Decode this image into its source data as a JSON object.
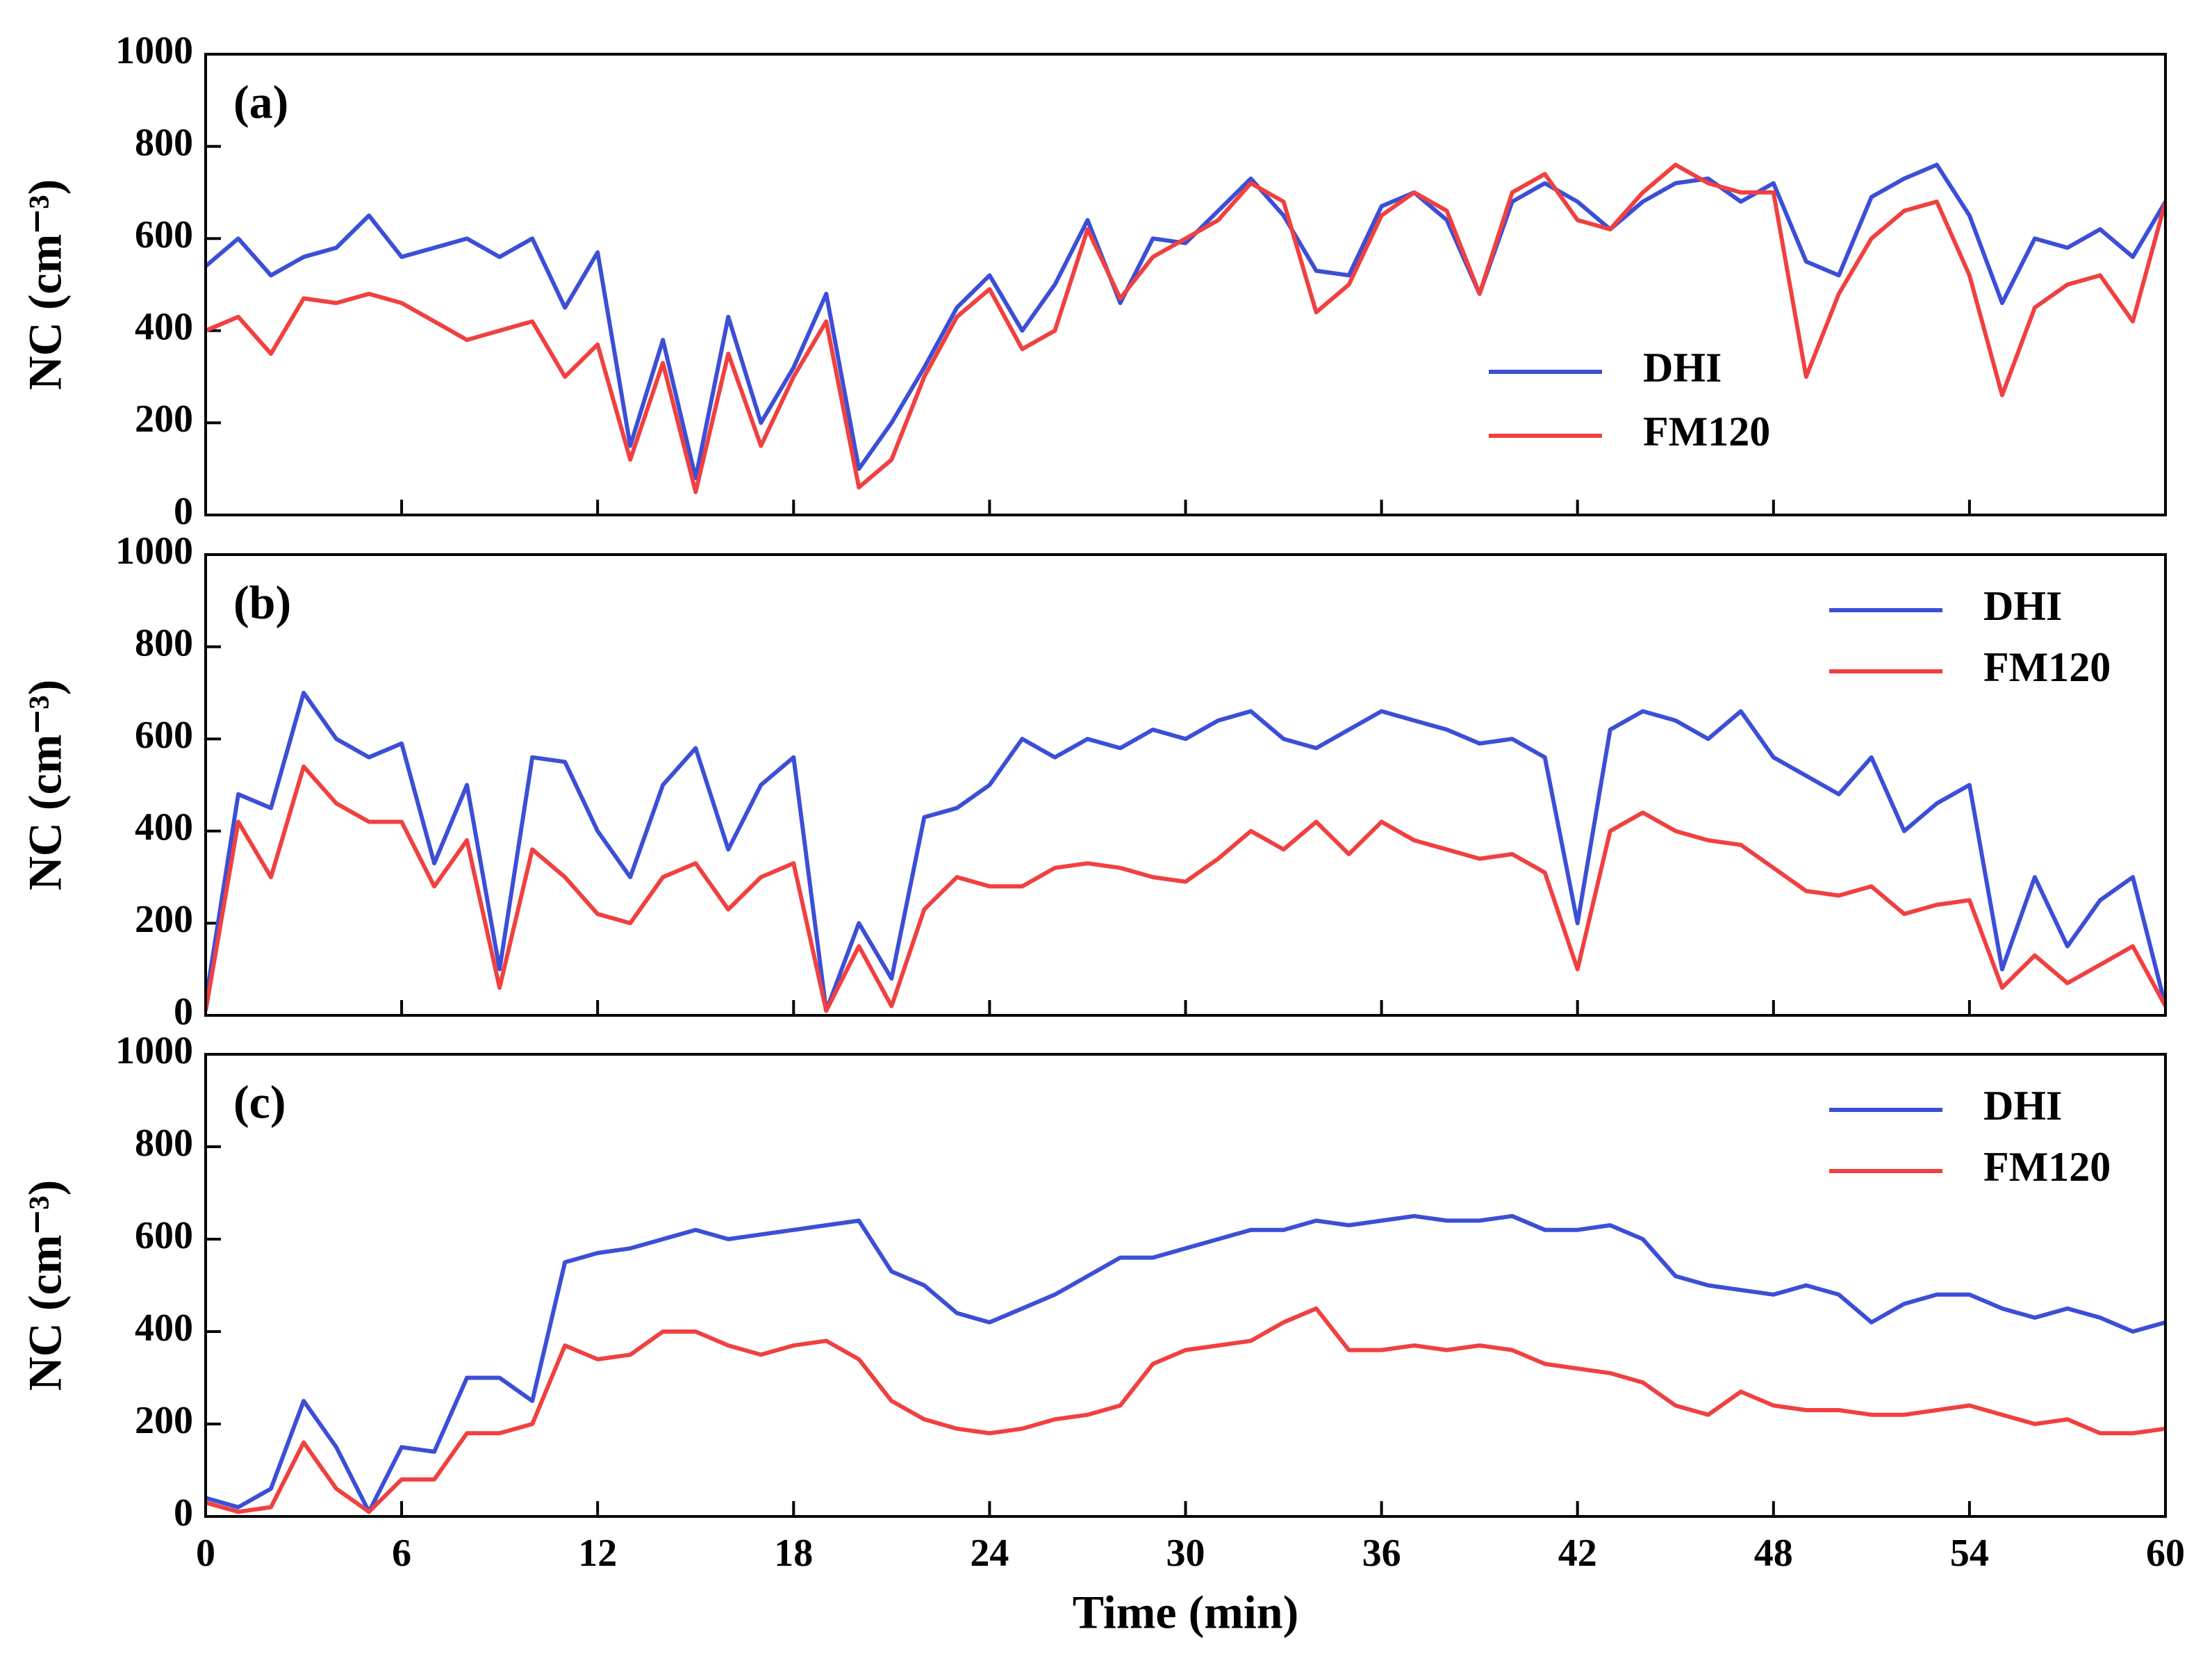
{
  "chart_data": [
    {
      "type": "line",
      "title": "(a)",
      "ylabel": "NC (cm⁻³)",
      "legend": "center right",
      "xlim": [
        0,
        60
      ],
      "xticks": [
        0,
        6,
        12,
        18,
        24,
        30,
        36,
        42,
        48,
        54,
        60
      ],
      "ylim": [
        0,
        1000
      ],
      "yticks": [
        0,
        200,
        400,
        600,
        800,
        1000
      ],
      "x": [
        0,
        1,
        2,
        3,
        4,
        5,
        6,
        7,
        8,
        9,
        10,
        11,
        12,
        13,
        14,
        15,
        16,
        17,
        18,
        19,
        20,
        21,
        22,
        23,
        24,
        25,
        26,
        27,
        28,
        29,
        30,
        31,
        32,
        33,
        34,
        35,
        36,
        37,
        38,
        39,
        40,
        41,
        42,
        43,
        44,
        45,
        46,
        47,
        48,
        49,
        50,
        51,
        52,
        53,
        54,
        55,
        56,
        57,
        58,
        59,
        60
      ],
      "series": [
        {
          "name": "DHI",
          "color": "#3b4fd6",
          "values": [
            540,
            600,
            520,
            560,
            580,
            650,
            560,
            580,
            600,
            560,
            600,
            450,
            570,
            150,
            380,
            80,
            430,
            200,
            320,
            480,
            100,
            200,
            320,
            450,
            520,
            400,
            500,
            640,
            460,
            600,
            590,
            660,
            730,
            650,
            530,
            520,
            670,
            700,
            640,
            480,
            680,
            720,
            680,
            620,
            680,
            720,
            730,
            680,
            720,
            550,
            520,
            690,
            730,
            760,
            650,
            460,
            600,
            580,
            620,
            560,
            680
          ]
        },
        {
          "name": "FM120",
          "color": "#f04040",
          "values": [
            400,
            430,
            350,
            470,
            460,
            480,
            460,
            420,
            380,
            400,
            420,
            300,
            370,
            120,
            330,
            50,
            350,
            150,
            300,
            420,
            60,
            120,
            300,
            430,
            490,
            360,
            400,
            620,
            470,
            560,
            600,
            640,
            720,
            680,
            440,
            500,
            650,
            700,
            660,
            480,
            700,
            740,
            640,
            620,
            700,
            760,
            720,
            700,
            700,
            300,
            480,
            600,
            660,
            680,
            520,
            260,
            450,
            500,
            520,
            420,
            680
          ]
        }
      ]
    },
    {
      "type": "line",
      "title": "(b)",
      "ylabel": "NC (cm⁻³)",
      "legend": "upper right",
      "xlim": [
        0,
        60
      ],
      "xticks": [
        0,
        6,
        12,
        18,
        24,
        30,
        36,
        42,
        48,
        54,
        60
      ],
      "ylim": [
        0,
        1000
      ],
      "yticks": [
        0,
        200,
        400,
        600,
        800,
        1000
      ],
      "x": [
        0,
        1,
        2,
        3,
        4,
        5,
        6,
        7,
        8,
        9,
        10,
        11,
        12,
        13,
        14,
        15,
        16,
        17,
        18,
        19,
        20,
        21,
        22,
        23,
        24,
        25,
        26,
        27,
        28,
        29,
        30,
        31,
        32,
        33,
        34,
        35,
        36,
        37,
        38,
        39,
        40,
        41,
        42,
        43,
        44,
        45,
        46,
        47,
        48,
        49,
        50,
        51,
        52,
        53,
        54,
        55,
        56,
        57,
        58,
        59,
        60
      ],
      "series": [
        {
          "name": "DHI",
          "color": "#3b4fd6",
          "values": [
            30,
            480,
            450,
            700,
            600,
            560,
            590,
            330,
            500,
            100,
            560,
            550,
            400,
            300,
            500,
            580,
            360,
            500,
            560,
            10,
            200,
            80,
            430,
            450,
            500,
            600,
            560,
            600,
            580,
            620,
            600,
            640,
            660,
            600,
            580,
            620,
            660,
            640,
            620,
            590,
            600,
            560,
            200,
            620,
            660,
            640,
            600,
            660,
            560,
            520,
            480,
            560,
            400,
            460,
            500,
            100,
            300,
            150,
            250,
            300,
            20
          ]
        },
        {
          "name": "FM120",
          "color": "#f04040",
          "values": [
            10,
            420,
            300,
            540,
            460,
            420,
            420,
            280,
            380,
            60,
            360,
            300,
            220,
            200,
            300,
            330,
            230,
            300,
            330,
            10,
            150,
            20,
            230,
            300,
            280,
            280,
            320,
            330,
            320,
            300,
            290,
            340,
            400,
            360,
            420,
            350,
            420,
            380,
            360,
            340,
            350,
            310,
            100,
            400,
            440,
            400,
            380,
            370,
            320,
            270,
            260,
            280,
            220,
            240,
            250,
            60,
            130,
            70,
            110,
            150,
            20
          ]
        }
      ]
    },
    {
      "type": "line",
      "title": "(c)",
      "ylabel": "NC (cm⁻³)",
      "xlabel": "Time (min)",
      "legend": "upper right",
      "xlim": [
        0,
        60
      ],
      "xticks": [
        0,
        6,
        12,
        18,
        24,
        30,
        36,
        42,
        48,
        54,
        60
      ],
      "ylim": [
        0,
        1000
      ],
      "yticks": [
        0,
        200,
        400,
        600,
        800,
        1000
      ],
      "x": [
        0,
        1,
        2,
        3,
        4,
        5,
        6,
        7,
        8,
        9,
        10,
        11,
        12,
        13,
        14,
        15,
        16,
        17,
        18,
        19,
        20,
        21,
        22,
        23,
        24,
        25,
        26,
        27,
        28,
        29,
        30,
        31,
        32,
        33,
        34,
        35,
        36,
        37,
        38,
        39,
        40,
        41,
        42,
        43,
        44,
        45,
        46,
        47,
        48,
        49,
        50,
        51,
        52,
        53,
        54,
        55,
        56,
        57,
        58,
        59,
        60
      ],
      "series": [
        {
          "name": "DHI",
          "color": "#3b4fd6",
          "values": [
            40,
            20,
            60,
            250,
            150,
            10,
            150,
            140,
            300,
            300,
            250,
            550,
            570,
            580,
            600,
            620,
            600,
            610,
            620,
            630,
            640,
            530,
            500,
            440,
            420,
            450,
            480,
            520,
            560,
            560,
            580,
            600,
            620,
            620,
            640,
            630,
            640,
            650,
            640,
            640,
            650,
            620,
            620,
            630,
            600,
            520,
            500,
            490,
            480,
            500,
            480,
            420,
            460,
            480,
            480,
            450,
            430,
            450,
            430,
            400,
            420
          ]
        },
        {
          "name": "FM120",
          "color": "#f04040",
          "values": [
            30,
            10,
            20,
            160,
            60,
            10,
            80,
            80,
            180,
            180,
            200,
            370,
            340,
            350,
            400,
            400,
            370,
            350,
            370,
            380,
            340,
            250,
            210,
            190,
            180,
            190,
            210,
            220,
            240,
            330,
            360,
            370,
            380,
            420,
            450,
            360,
            360,
            370,
            360,
            370,
            360,
            330,
            320,
            310,
            290,
            240,
            220,
            270,
            240,
            230,
            230,
            220,
            220,
            230,
            240,
            220,
            200,
            210,
            180,
            180,
            190
          ]
        }
      ]
    }
  ]
}
